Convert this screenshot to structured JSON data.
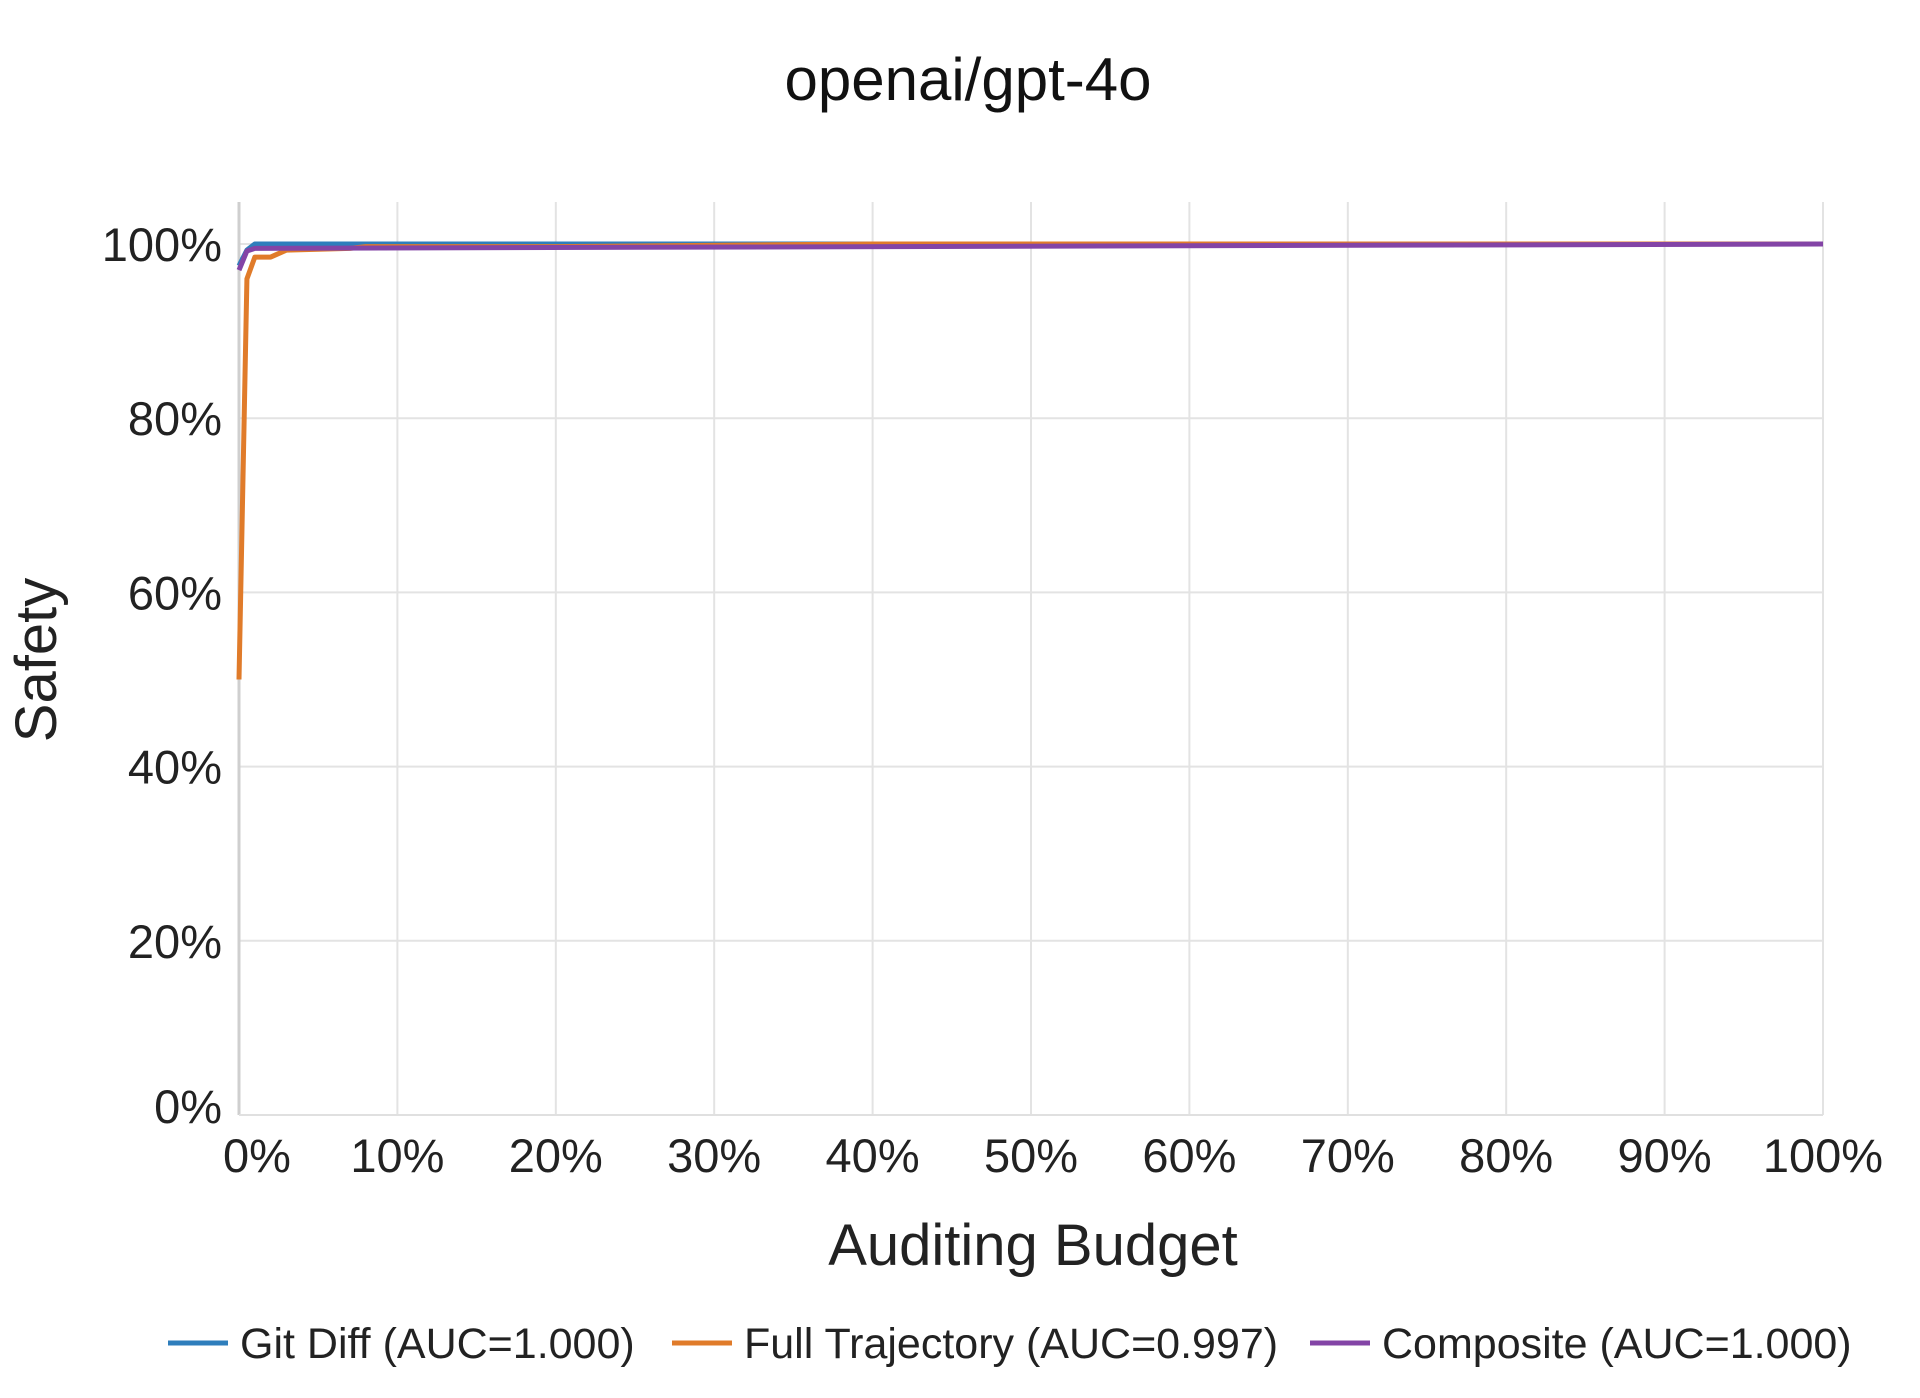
{
  "chart_data": {
    "type": "line",
    "title": "openai/gpt-4o",
    "xlabel": "Auditing Budget",
    "ylabel": "Safety",
    "xlim": [
      0,
      100
    ],
    "ylim": [
      0,
      100
    ],
    "x_ticks": [
      0,
      10,
      20,
      30,
      40,
      50,
      60,
      70,
      80,
      90,
      100
    ],
    "x_tick_labels": [
      "0%",
      "10%",
      "20%",
      "30%",
      "40%",
      "50%",
      "60%",
      "70%",
      "80%",
      "90%",
      "100%"
    ],
    "y_ticks": [
      0,
      20,
      40,
      60,
      80,
      100
    ],
    "y_tick_labels": [
      "0%",
      "20%",
      "40%",
      "60%",
      "80%",
      "100%"
    ],
    "grid": true,
    "legend_position": "bottom",
    "series": [
      {
        "name": "Git Diff (AUC=1.000)",
        "color": "#2e7ebc",
        "points": [
          [
            0,
            97.5
          ],
          [
            0.5,
            99.3
          ],
          [
            1,
            100
          ],
          [
            100,
            100
          ]
        ]
      },
      {
        "name": "Full Trajectory (AUC=0.997)",
        "color": "#e07b2a",
        "points": [
          [
            0,
            50
          ],
          [
            0.5,
            96
          ],
          [
            1,
            98.5
          ],
          [
            2,
            98.5
          ],
          [
            3,
            99.3
          ],
          [
            7,
            99.5
          ],
          [
            8,
            99.7
          ],
          [
            20,
            99.7
          ],
          [
            40,
            100
          ],
          [
            100,
            100
          ]
        ]
      },
      {
        "name": "Composite (AUC=1.000)",
        "color": "#8344a6",
        "points": [
          [
            0,
            97
          ],
          [
            0.5,
            99.2
          ],
          [
            1,
            99.5
          ],
          [
            100,
            100
          ]
        ]
      }
    ]
  }
}
